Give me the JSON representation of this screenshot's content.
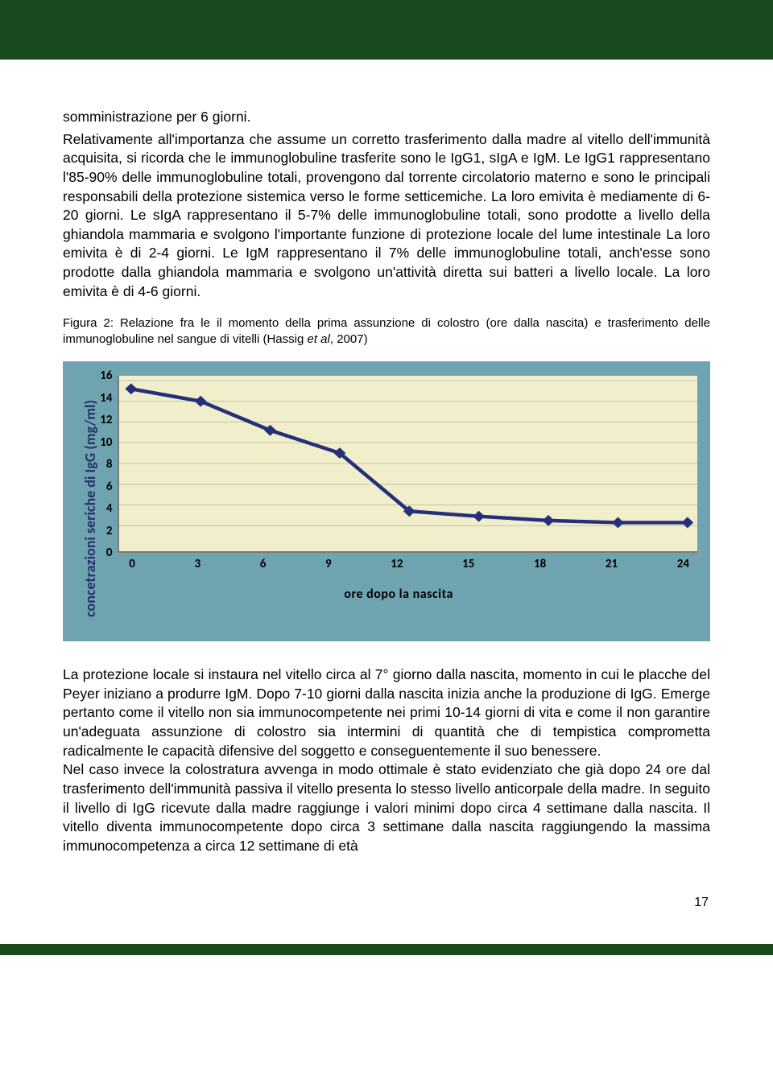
{
  "banner_color": "#1a4a1f",
  "paragraph1": "somministrazione per 6 giorni.",
  "paragraph2": "Relativamente all'importanza che assume un corretto trasferimento dalla madre al vitello dell'immunità acquisita, si ricorda che le immunoglobuline trasferite sono le IgG1, sIgA e IgM. Le IgG1 rappresentano l'85-90% delle immunoglobuline totali, provengono dal torrente circolatorio materno e sono le principali responsabili della protezione sistemica verso le forme setticemiche. La loro emivita è mediamente di 6-20 giorni. Le sIgA rappresentano il 5-7% delle immunoglobuline totali, sono prodotte a livello della ghiandola mammaria e svolgono l'importante funzione di protezione locale del lume intestinale La loro emivita è di 2-4 giorni. Le IgM rappresentano il 7% delle immunoglobuline totali, anch'esse sono prodotte dalla ghiandola mammaria e svolgono un'attività diretta sui batteri a livello locale. La loro emivita è di 4-6 giorni.",
  "caption_prefix": "Figura 2: Relazione fra le il momento della prima assunzione di colostro (ore dalla nascita) e trasferimento delle immunoglobuline nel sangue di vitelli (Hassig ",
  "caption_italic": "et al",
  "caption_suffix": ", 2007)",
  "chart": {
    "type": "line",
    "background_color": "#6fa3af",
    "plot_bg": "#f0eecb",
    "grid_color": "#c7c59e",
    "line_color": "#25307a",
    "line_width": 4.5,
    "marker_style": "diamond",
    "marker_size": 7,
    "marker_color": "#25307a",
    "y_label": "concetrazioni seriche di IgG (mg/ml)",
    "y_label_color": "#26316b",
    "y_label_fontsize": 18,
    "x_label": "ore dopo la nascita",
    "x_label_fontsize": 16,
    "tick_fontsize": 15,
    "ylim": [
      0,
      16
    ],
    "ytick_step": 2,
    "y_ticks": [
      16,
      14,
      12,
      10,
      8,
      6,
      4,
      2,
      0
    ],
    "xlim": [
      0,
      24
    ],
    "xtick_step": 3,
    "x_ticks": [
      0,
      3,
      6,
      9,
      12,
      15,
      18,
      21,
      24
    ],
    "x_values": [
      0,
      3,
      6,
      9,
      12,
      15,
      18,
      21,
      24
    ],
    "y_values": [
      15.2,
      14.0,
      11.2,
      9.0,
      3.4,
      2.9,
      2.5,
      2.3,
      2.3
    ]
  },
  "paragraph3": "La protezione locale si instaura nel vitello circa al 7° giorno dalla nascita, momento in cui le placche del Peyer iniziano a produrre IgM. Dopo 7-10 giorni dalla nascita inizia anche la produzione di IgG. Emerge pertanto come il vitello non  sia  immunocompetente nei primi 10-14 giorni di vita e come il non garantire un'adeguata assunzione di colostro sia intermini di quantità che di tempistica comprometta radicalmente le capacità difensive del soggetto e conseguentemente il suo benessere.",
  "paragraph4": "Nel caso invece la colostratura avvenga in modo ottimale è stato evidenziato che già dopo 24 ore dal trasferimento dell'immunità passiva il vitello presenta lo stesso livello anticorpale della madre. In seguito il livello di IgG ricevute dalla madre raggiunge i valori minimi dopo circa 4 settimane dalla nascita. Il vitello diventa immunocompetente dopo circa 3 settimane dalla nascita raggiungendo la massima immunocompetenza a circa 12 settimane di età",
  "page_number": "17"
}
